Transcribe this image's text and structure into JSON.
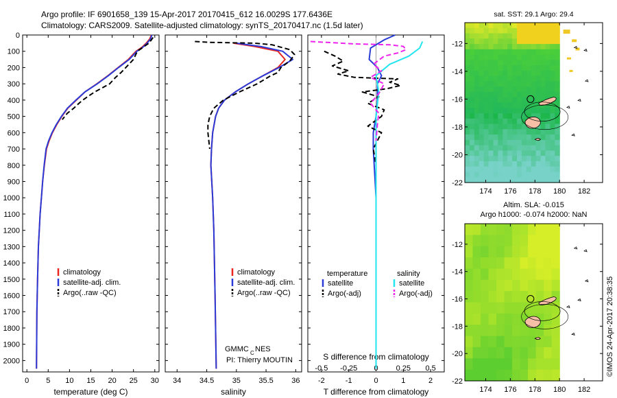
{
  "header": {
    "line1": "Argo profile: IF 6901658_139 15-Apr-2017 20170415_612 16.0029S 177.6436E",
    "line2": "Climatology: CARS2009. Satellite-adjusted climatology: synTS_20170417.nc (1.5d later)"
  },
  "footer": {
    "credit_left": "GMMC",
    "credit_sub": "C",
    "credit_right": "NES",
    "pi": "PI: Thierry MOUTIN",
    "stamp": "©IMOS 24-Apr-2017 20:38:35"
  },
  "colors": {
    "climatology": "#e8251f",
    "satellite": "#2a3bd8",
    "argo": "#000000",
    "sal_satellite": "#22e5ee",
    "sal_argo": "#ee22ee"
  },
  "chart_data": [
    {
      "type": "line",
      "id": "temperature",
      "xlabel": "temperature (deg C)",
      "ylabel": "",
      "xlim": [
        -1,
        31
      ],
      "ylim": [
        2070,
        0
      ],
      "y_reversed": true,
      "xticks": [
        0,
        5,
        10,
        15,
        20,
        25,
        30
      ],
      "yticks": [
        0,
        100,
        200,
        300,
        400,
        500,
        600,
        700,
        800,
        900,
        1000,
        1100,
        1200,
        1300,
        1400,
        1500,
        1600,
        1700,
        1800,
        1900,
        2000
      ],
      "legend": {
        "placement": "lower-center",
        "entries": [
          "climatology",
          "satellite-adj. clim.",
          "Argo(..raw -QC)"
        ]
      },
      "series": [
        {
          "name": "climatology",
          "color": "#e8251f",
          "dash": "solid",
          "x": [
            29.2,
            28.8,
            28.0,
            27.0,
            25.6,
            23.8,
            21.4,
            19.0,
            16.4,
            13.6,
            11.6,
            9.6,
            8.2,
            7.0,
            6.0,
            5.2,
            4.6,
            4.1,
            3.7,
            3.4,
            3.1,
            2.9,
            2.7,
            2.5,
            2.35,
            2.25
          ],
          "y": [
            0,
            25,
            50,
            75,
            100,
            150,
            200,
            250,
            300,
            350,
            400,
            450,
            500,
            550,
            600,
            650,
            700,
            800,
            900,
            1000,
            1100,
            1200,
            1300,
            1500,
            1700,
            2050
          ]
        },
        {
          "name": "satellite-adj. clim.",
          "color": "#2a3bd8",
          "dash": "solid",
          "x": [
            29.3,
            29.0,
            28.2,
            27.2,
            25.8,
            24.0,
            21.5,
            19.1,
            16.5,
            13.6,
            11.5,
            9.5,
            8.1,
            6.9,
            5.9,
            5.1,
            4.5,
            4.05,
            3.7,
            3.4,
            3.1,
            2.9,
            2.7,
            2.5,
            2.35,
            2.25
          ],
          "y": [
            0,
            25,
            50,
            75,
            100,
            150,
            200,
            250,
            300,
            350,
            400,
            450,
            500,
            550,
            600,
            650,
            700,
            800,
            900,
            1000,
            1100,
            1200,
            1300,
            1500,
            1700,
            2050
          ]
        },
        {
          "name": "Argo(..raw -QC)",
          "color": "#000000",
          "dash": "dashed",
          "x": [
            29.6,
            29.2,
            28.6,
            27.0,
            25.9,
            25.0,
            23.2,
            22.1,
            20.8,
            19.4,
            17.3,
            15.9,
            14.2,
            13.1,
            12.2,
            11.0,
            9.5,
            8.3
          ],
          "y": [
            15,
            30,
            50,
            80,
            100,
            150,
            200,
            230,
            260,
            300,
            330,
            350,
            380,
            400,
            420,
            450,
            480,
            520
          ]
        }
      ]
    },
    {
      "type": "line",
      "id": "salinity",
      "xlabel": "salinity",
      "ylabel": "",
      "xlim": [
        33.8,
        36.1
      ],
      "ylim": [
        2070,
        0
      ],
      "y_reversed": true,
      "xticks": [
        34,
        34.5,
        35,
        35.5,
        36
      ],
      "legend": {
        "placement": "lower-right",
        "entries": [
          "climatology",
          "satellite-adj. clim.",
          "Argo(..raw -QC)"
        ]
      },
      "series": [
        {
          "name": "climatology",
          "color": "#e8251f",
          "dash": "solid",
          "x": [
            34.95,
            35.3,
            35.7,
            35.82,
            35.7,
            35.45,
            35.2,
            34.98,
            34.8,
            34.7,
            34.65,
            34.6,
            34.58,
            34.57,
            34.6,
            34.62,
            34.64,
            34.66
          ],
          "y": [
            50,
            70,
            100,
            150,
            200,
            250,
            300,
            350,
            400,
            450,
            500,
            600,
            700,
            800,
            1000,
            1200,
            1600,
            2050
          ]
        },
        {
          "name": "satellite-adj. clim.",
          "color": "#2a3bd8",
          "dash": "solid",
          "x": [
            35.0,
            35.4,
            35.78,
            35.95,
            35.72,
            35.45,
            35.2,
            34.98,
            34.8,
            34.7,
            34.65,
            34.6,
            34.58,
            34.57,
            34.6,
            34.62,
            34.64,
            34.66
          ],
          "y": [
            50,
            70,
            100,
            150,
            200,
            250,
            300,
            350,
            400,
            450,
            500,
            600,
            700,
            800,
            1000,
            1200,
            1600,
            2050
          ]
        },
        {
          "name": "Argo(..raw -QC)",
          "color": "#000000",
          "dash": "dashed",
          "x": [
            34.3,
            34.55,
            35.3,
            35.6,
            35.75,
            35.9,
            35.98,
            35.9,
            35.75,
            35.7,
            35.58,
            35.35,
            35.05,
            34.78,
            34.62,
            34.55,
            34.52,
            34.52,
            34.55
          ],
          "y": [
            40,
            45,
            50,
            60,
            75,
            90,
            120,
            160,
            200,
            230,
            250,
            300,
            350,
            400,
            450,
            500,
            550,
            600,
            700
          ]
        }
      ]
    },
    {
      "type": "line",
      "id": "differences",
      "xlabel": "T difference from climatology",
      "xlabel_top": "S difference from climatology",
      "xlim": [
        -2.5,
        2.5
      ],
      "ylim": [
        2070,
        0
      ],
      "y_reversed": true,
      "xticks": [
        -2,
        -1,
        0,
        1,
        2
      ],
      "xticks_salinity": [
        "-0.5",
        "-0.25",
        "0",
        "0.25",
        "0.5"
      ],
      "legend": {
        "placement": "lower-center",
        "headers": [
          "temperature",
          "salinity"
        ],
        "entries": [
          "satellite",
          "Argo(-adj)",
          "satellite",
          "Argo(-adj)"
        ]
      },
      "series": [
        {
          "name": "satellite",
          "color": "#2a3bd8",
          "dash": "solid",
          "x": [
            0.7,
            0.3,
            -0.2,
            -0.25,
            0.05,
            0.2,
            0.05,
            0.05,
            0.0,
            -0.1,
            -0.1,
            0.0,
            0.0,
            0.0,
            0.0
          ],
          "y": [
            0,
            30,
            80,
            150,
            200,
            250,
            300,
            400,
            500,
            600,
            700,
            1000,
            1400,
            1800,
            2050
          ]
        },
        {
          "name": "Argo(-adj)",
          "color": "#000000",
          "dash": "dashed",
          "x": [
            -1.9,
            -1.5,
            -1.2,
            -1.6,
            -1.0,
            -1.4,
            -0.8,
            0.8,
            0.5,
            0.9,
            0.4,
            -0.5,
            0.1,
            -0.3,
            0.3,
            0.2,
            -0.3,
            0.2,
            -0.1,
            0.0
          ],
          "y": [
            100,
            130,
            160,
            190,
            220,
            240,
            260,
            270,
            290,
            310,
            330,
            350,
            380,
            420,
            460,
            500,
            560,
            600,
            700,
            800
          ]
        },
        {
          "name": "satellite",
          "color": "#22e5ee",
          "dash": "solid",
          "x": [
            1.7,
            1.6,
            1.2,
            0.5,
            0.0,
            0.1,
            0.0,
            0.0,
            0.0,
            0.0
          ],
          "y": [
            40,
            80,
            130,
            180,
            250,
            350,
            500,
            800,
            1400,
            2050
          ]
        },
        {
          "name": "Argo(-adj)",
          "color": "#ee22ee",
          "dash": "dashed",
          "x": [
            -2.4,
            -1.5,
            -0.8,
            0.5,
            1.0,
            1.1,
            0.8,
            0.3,
            -0.1,
            0.2,
            -0.2,
            0.3,
            0.1,
            -0.2,
            0.1,
            0.05,
            0.0
          ],
          "y": [
            40,
            48,
            55,
            60,
            70,
            90,
            110,
            130,
            180,
            220,
            260,
            300,
            360,
            420,
            480,
            550,
            650
          ]
        }
      ]
    },
    {
      "type": "heatmap",
      "id": "sst_map",
      "title": "sat. SST: 29.1  Argo: 29.4",
      "xlim": [
        172.3,
        183.5
      ],
      "ylim": [
        -22,
        -10.5
      ],
      "xticks": [
        174,
        176,
        178,
        180,
        182
      ],
      "yticks": [
        -12,
        -14,
        -16,
        -18,
        -20,
        -22
      ],
      "marker": {
        "lon": 177.64,
        "lat": -16.0
      }
    },
    {
      "type": "heatmap",
      "id": "sla_map",
      "title_line1": "Altim. SLA: -0.015",
      "title_line2": "Argo h1000: -0.074 h2000: NaN",
      "xlim": [
        172.3,
        183.5
      ],
      "ylim": [
        -22,
        -10.5
      ],
      "xticks": [
        174,
        176,
        178,
        180,
        182
      ],
      "yticks": [
        -12,
        -14,
        -16,
        -18,
        -20,
        -22
      ],
      "marker": {
        "lon": 177.64,
        "lat": -16.0
      }
    }
  ]
}
